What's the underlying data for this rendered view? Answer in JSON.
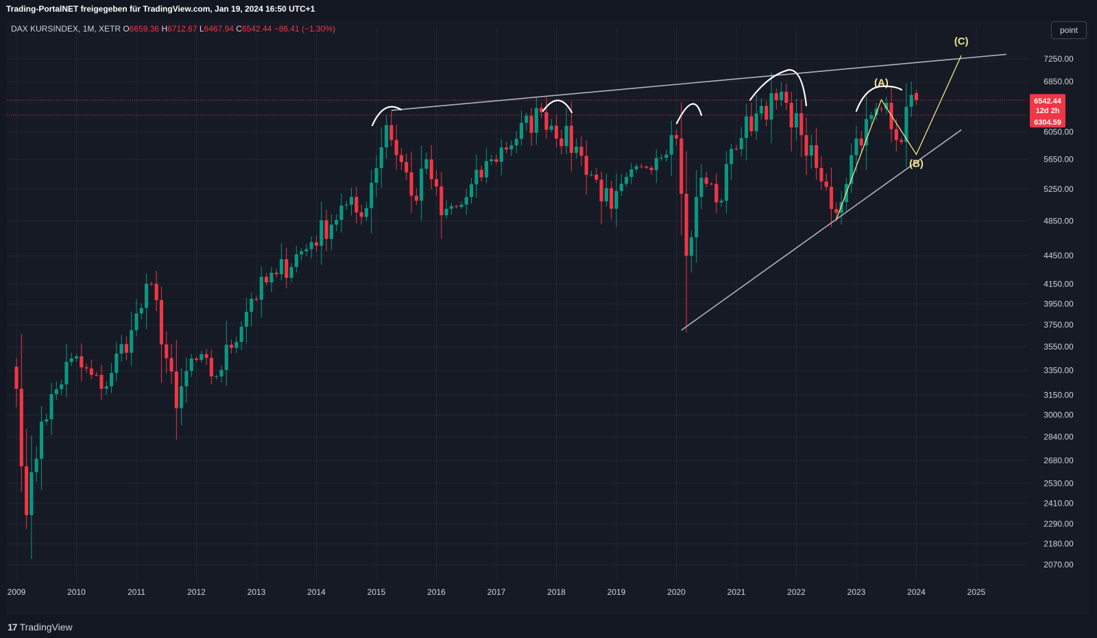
{
  "header": {
    "caption": "Trading-PortalNET freigegeben für TradingView.com, Jan 19, 2024 16:50 UTC+1"
  },
  "legend": {
    "symbol": "DAX KURSINDEX, 1M, XETR",
    "o_label": "O",
    "o_value": "6659.36",
    "h_label": "H",
    "h_value": "6712.67",
    "l_label": "L",
    "l_value": "6467.94",
    "c_label": "C",
    "c_value": "6542.44",
    "change": "−86.41 (−1.30%)"
  },
  "toolbar": {
    "scale_label": "point"
  },
  "footer": {
    "logo_mark": "17",
    "logo_text": "TradingView"
  },
  "colors": {
    "background": "#131722",
    "up": "#089981",
    "down": "#f23645",
    "trendline": "#b2b5be",
    "wave": "#f0e68c",
    "arc": "#ffffff"
  },
  "badges": {
    "last_price": "6542.44",
    "countdown": "12d 2h",
    "prev_close": "6304.59"
  },
  "annotations": {
    "wave_a": "(A)",
    "wave_b": "(B)",
    "wave_c": "(C)"
  },
  "chart_data": {
    "type": "candlestick",
    "symbol": "DAX KURSINDEX",
    "interval": "1M",
    "exchange": "XETR",
    "y_scale": "log",
    "ylim": [
      1980,
      7600
    ],
    "xlim": [
      "2008-12",
      "2025-10"
    ],
    "grid": true,
    "y_ticks": [
      "7250.00",
      "6850.00",
      "6050.00",
      "5650.00",
      "5250.00",
      "4850.00",
      "4450.00",
      "4150.00",
      "3950.00",
      "3750.00",
      "3550.00",
      "3350.00",
      "3150.00",
      "3000.00",
      "2840.00",
      "2680.00",
      "2530.00",
      "2410.00",
      "2290.00",
      "2180.00",
      "2070.00"
    ],
    "x_ticks": [
      "2009",
      "2010",
      "2011",
      "2012",
      "2013",
      "2014",
      "2015",
      "2016",
      "2017",
      "2018",
      "2019",
      "2020",
      "2021",
      "2022",
      "2023",
      "2024",
      "2025"
    ],
    "horizontal_levels": [
      6542.44,
      6304.59
    ],
    "anchors": [
      {
        "date": "2009-01",
        "close": 3200
      },
      {
        "date": "2009-03",
        "close": 2340
      },
      {
        "date": "2009-06",
        "close": 2950
      },
      {
        "date": "2009-12",
        "close": 3450
      },
      {
        "date": "2010-06",
        "close": 3200
      },
      {
        "date": "2010-12",
        "close": 3700
      },
      {
        "date": "2011-04",
        "close": 4150
      },
      {
        "date": "2011-09",
        "close": 3050
      },
      {
        "date": "2011-12",
        "close": 3450
      },
      {
        "date": "2012-05",
        "close": 3300
      },
      {
        "date": "2012-12",
        "close": 4000
      },
      {
        "date": "2013-05",
        "close": 4250
      },
      {
        "date": "2013-12",
        "close": 4600
      },
      {
        "date": "2014-07",
        "close": 5050
      },
      {
        "date": "2014-10",
        "close": 4900
      },
      {
        "date": "2015-03",
        "close": 6150
      },
      {
        "date": "2015-09",
        "close": 5100
      },
      {
        "date": "2015-11",
        "close": 5650
      },
      {
        "date": "2016-02",
        "close": 4920
      },
      {
        "date": "2016-06",
        "close": 5050
      },
      {
        "date": "2016-12",
        "close": 5650
      },
      {
        "date": "2017-10",
        "close": 6350
      },
      {
        "date": "2018-06",
        "close": 5700
      },
      {
        "date": "2018-12",
        "close": 5000
      },
      {
        "date": "2019-06",
        "close": 5550
      },
      {
        "date": "2019-12",
        "close": 6000
      },
      {
        "date": "2020-01",
        "close": 5950
      },
      {
        "date": "2020-03",
        "close": 4450
      },
      {
        "date": "2020-06",
        "close": 5400
      },
      {
        "date": "2020-10",
        "close": 5100
      },
      {
        "date": "2020-12",
        "close": 5800
      },
      {
        "date": "2021-06",
        "close": 6450
      },
      {
        "date": "2021-11",
        "close": 6500
      },
      {
        "date": "2022-02",
        "close": 6000
      },
      {
        "date": "2022-06",
        "close": 5350
      },
      {
        "date": "2022-09",
        "close": 4950
      },
      {
        "date": "2023-01",
        "close": 5950
      },
      {
        "date": "2023-07",
        "close": 6500
      },
      {
        "date": "2023-10",
        "close": 5900
      },
      {
        "date": "2023-12",
        "close": 6630
      },
      {
        "date": "2024-01",
        "close": 6542.44
      }
    ],
    "last_candle": {
      "date": "2024-01",
      "open": 6659.36,
      "high": 6712.67,
      "low": 6467.94,
      "close": 6542.44
    },
    "trendlines": [
      {
        "from": {
          "date": "2015-04",
          "price": 6380
        },
        "to": {
          "date": "2025-07",
          "price": 7330
        },
        "label": ""
      },
      {
        "from": {
          "date": "2020-02",
          "price": 3700
        },
        "to": {
          "date": "2024-10",
          "price": 6080
        },
        "label": ""
      }
    ],
    "elliott_waves": [
      {
        "label": "(A)",
        "date": "2023-06",
        "price": 6550
      },
      {
        "label": "(B)",
        "date": "2024-01",
        "price": 5720
      },
      {
        "label": "(C)",
        "date": "2024-10",
        "price": 7310
      }
    ]
  }
}
